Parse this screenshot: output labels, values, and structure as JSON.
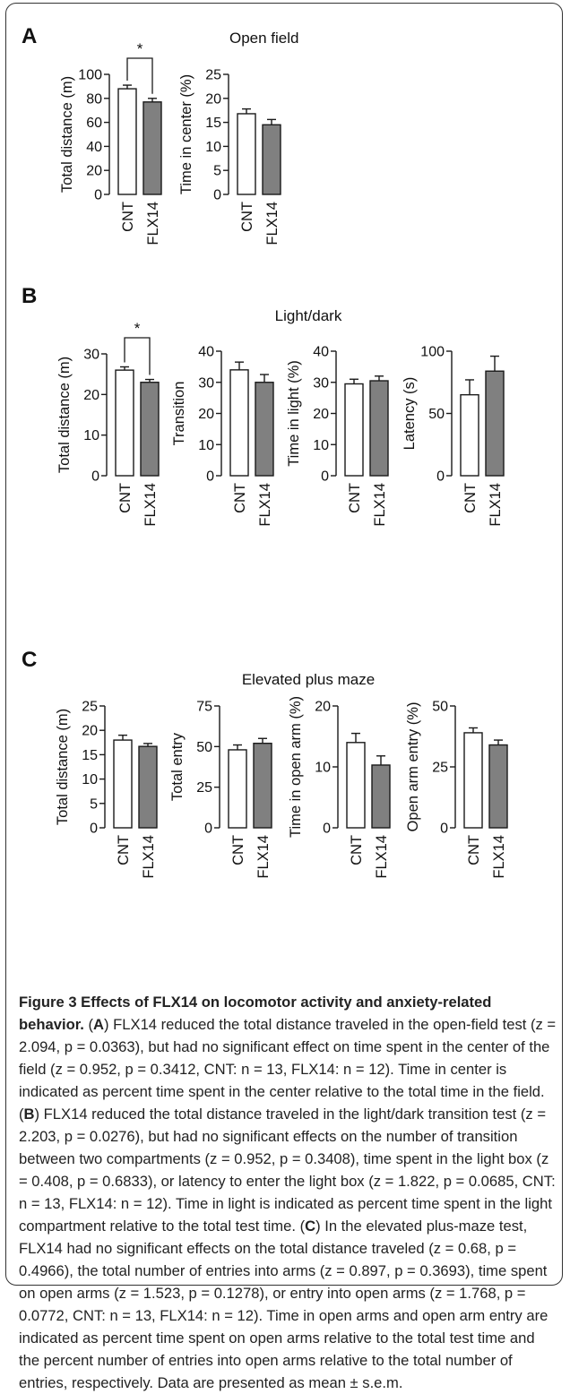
{
  "panels": [
    {
      "letter": "A",
      "title": "Open field",
      "charts": [
        0,
        1
      ]
    },
    {
      "letter": "B",
      "title": "Light/dark",
      "charts": [
        2,
        3,
        4,
        5
      ]
    },
    {
      "letter": "C",
      "title": "Elevated plus maze",
      "charts": [
        6,
        7,
        8,
        9
      ]
    }
  ],
  "chart_data": [
    {
      "type": "bar",
      "panel": "A",
      "ylabel": "Total distance (m)",
      "categories": [
        "CNT",
        "FLX14"
      ],
      "values": [
        88,
        77
      ],
      "errors": [
        3,
        3
      ],
      "ylim": [
        0,
        100
      ],
      "yticks": [
        0,
        20,
        40,
        60,
        80,
        100
      ],
      "significance": "*"
    },
    {
      "type": "bar",
      "panel": "A",
      "ylabel": "Time in center (%)",
      "categories": [
        "CNT",
        "FLX14"
      ],
      "values": [
        16.8,
        14.5
      ],
      "errors": [
        1.0,
        1.1
      ],
      "ylim": [
        0,
        25
      ],
      "yticks": [
        0,
        5,
        10,
        15,
        20,
        25
      ]
    },
    {
      "type": "bar",
      "panel": "B",
      "ylabel": "Total distance (m)",
      "categories": [
        "CNT",
        "FLX14"
      ],
      "values": [
        26,
        23
      ],
      "errors": [
        0.8,
        0.7
      ],
      "ylim": [
        0,
        30
      ],
      "yticks": [
        0,
        10,
        20,
        30
      ],
      "significance": "*"
    },
    {
      "type": "bar",
      "panel": "B",
      "ylabel": "Transition",
      "categories": [
        "CNT",
        "FLX14"
      ],
      "values": [
        34,
        30
      ],
      "errors": [
        2.5,
        2.5
      ],
      "ylim": [
        0,
        40
      ],
      "yticks": [
        0,
        10,
        20,
        30,
        40
      ]
    },
    {
      "type": "bar",
      "panel": "B",
      "ylabel": "Time in light (%)",
      "categories": [
        "CNT",
        "FLX14"
      ],
      "values": [
        29.5,
        30.5
      ],
      "errors": [
        1.5,
        1.5
      ],
      "ylim": [
        0,
        40
      ],
      "yticks": [
        0,
        10,
        20,
        30,
        40
      ]
    },
    {
      "type": "bar",
      "panel": "B",
      "ylabel": "Latency (s)",
      "categories": [
        "CNT",
        "FLX14"
      ],
      "values": [
        65,
        84
      ],
      "errors": [
        12,
        12
      ],
      "ylim": [
        0,
        100
      ],
      "yticks": [
        0,
        50,
        100
      ]
    },
    {
      "type": "bar",
      "panel": "C",
      "ylabel": "Total distance (m)",
      "categories": [
        "CNT",
        "FLX14"
      ],
      "values": [
        18,
        16.7
      ],
      "errors": [
        1.0,
        0.6
      ],
      "ylim": [
        0,
        25
      ],
      "yticks": [
        0,
        5,
        10,
        15,
        20,
        25
      ]
    },
    {
      "type": "bar",
      "panel": "C",
      "ylabel": "Total entry",
      "categories": [
        "CNT",
        "FLX14"
      ],
      "values": [
        48,
        52
      ],
      "errors": [
        3,
        3
      ],
      "ylim": [
        0,
        75
      ],
      "yticks": [
        0,
        25,
        50,
        75
      ]
    },
    {
      "type": "bar",
      "panel": "C",
      "ylabel": "Time in open arm (%)",
      "categories": [
        "CNT",
        "FLX14"
      ],
      "values": [
        14,
        10.3
      ],
      "errors": [
        1.5,
        1.5
      ],
      "ylim": [
        0,
        20
      ],
      "yticks": [
        0,
        10,
        20
      ]
    },
    {
      "type": "bar",
      "panel": "C",
      "ylabel": "Open arm entry (%)",
      "categories": [
        "CNT",
        "FLX14"
      ],
      "values": [
        39,
        34
      ],
      "errors": [
        2,
        2
      ],
      "ylim": [
        0,
        50
      ],
      "yticks": [
        0,
        25,
        50
      ]
    }
  ],
  "colors": {
    "cnt_fill": "#ffffff",
    "flx_fill": "#808080",
    "stroke": "#1a1a1a"
  },
  "caption": {
    "figure_label": "Figure 3 Effects of FLX14 on locomotor activity and anxiety-related behavior",
    "A_letter": "A",
    "A_text": "FLX14 reduced the total distance traveled in the open-field test (z = 2.094, p = 0.0363), but had no significant effect on time spent in the center of the field (z = 0.952, p = 0.3412, CNT: n = 13, FLX14: n = 12). Time in center is indicated as percent time spent in the center relative to the total time in the field.",
    "B_letter": "B",
    "B_text": "FLX14 reduced the total distance traveled in the light/dark transition test (z = 2.203, p = 0.0276), but had no significant effects on the number of transition between two compartments (z = 0.952, p = 0.3408), time spent in the light box (z = 0.408, p = 0.6833), or latency to enter the light box (z = 1.822, p = 0.0685, CNT: n = 13, FLX14: n = 12). Time in light is indicated as percent time spent in the light compartment relative to the total test time.",
    "C_letter": "C",
    "C_text": "In the elevated plus-maze test, FLX14 had no significant effects on the total distance traveled (z = 0.68, p = 0.4966), the total number of entries into arms (z = 0.897, p = 0.3693), time spent on open arms (z = 1.523, p = 0.1278), or entry into open arms (z = 1.768, p = 0.0772, CNT: n = 13, FLX14: n = 12). Time in open arms and open arm entry are indicated as percent time spent on open arms relative to the total test time and the percent number of entries into open arms relative to the total number of entries, respectively. Data are presented as mean ± s.e.m."
  }
}
